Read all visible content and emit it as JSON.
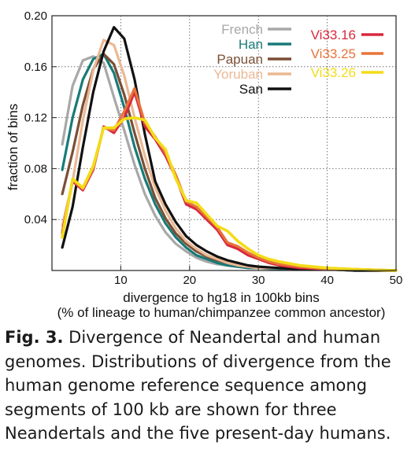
{
  "chart_data": {
    "type": "line",
    "xlabel": "divergence to hg18 in 100kb bins",
    "xlabel2": "(% of lineage to human/chimpanzee common ancestor)",
    "ylabel": "fraction of bins",
    "xlim": [
      0,
      50
    ],
    "ylim": [
      0,
      0.2
    ],
    "xticks": [
      10,
      20,
      30,
      40,
      50
    ],
    "yticks": [
      0.04,
      0.08,
      0.12,
      0.16,
      0.2
    ],
    "ytick_labels": [
      "0.04",
      "0.08",
      "0.12",
      "0.16",
      "0.20"
    ],
    "grid": true,
    "legend_placement": "top-right",
    "series": [
      {
        "name": "French",
        "color": "#a8a8a8",
        "width": 3.2,
        "x": [
          1.5,
          3,
          4.5,
          6,
          7.5,
          9,
          10.5,
          12,
          13.5,
          15,
          16.5,
          18,
          19.5,
          21,
          22.5,
          24,
          25.5,
          27,
          28.5,
          30,
          33,
          36,
          40,
          44,
          50
        ],
        "y": [
          0.099,
          0.145,
          0.165,
          0.168,
          0.163,
          0.136,
          0.11,
          0.083,
          0.06,
          0.043,
          0.03,
          0.021,
          0.015,
          0.01,
          0.007,
          0.005,
          0.004,
          0.003,
          0.002,
          0.002,
          0.001,
          0.001,
          0.001,
          0.0,
          0.0
        ]
      },
      {
        "name": "Han",
        "color": "#187a78",
        "width": 3.2,
        "x": [
          1.5,
          3,
          4.5,
          6,
          7.5,
          9,
          10.5,
          12,
          13.5,
          15,
          16.5,
          18,
          19.5,
          21,
          22.5,
          24,
          25.5,
          27,
          28.5,
          30,
          33,
          36,
          40,
          44,
          50
        ],
        "y": [
          0.079,
          0.12,
          0.15,
          0.166,
          0.17,
          0.155,
          0.128,
          0.097,
          0.072,
          0.052,
          0.037,
          0.026,
          0.018,
          0.012,
          0.009,
          0.006,
          0.004,
          0.003,
          0.002,
          0.002,
          0.001,
          0.001,
          0.001,
          0.0,
          0.0
        ]
      },
      {
        "name": "Papuan",
        "color": "#7a4f35",
        "width": 3.2,
        "x": [
          1.5,
          3,
          4.5,
          6,
          7.5,
          9,
          10.5,
          12,
          13.5,
          15,
          16.5,
          18,
          19.5,
          21,
          22.5,
          24,
          25.5,
          27,
          28.5,
          30,
          33,
          36,
          40,
          44,
          50
        ],
        "y": [
          0.06,
          0.093,
          0.13,
          0.158,
          0.17,
          0.162,
          0.138,
          0.108,
          0.08,
          0.057,
          0.041,
          0.029,
          0.021,
          0.015,
          0.011,
          0.008,
          0.006,
          0.004,
          0.003,
          0.002,
          0.002,
          0.001,
          0.001,
          0.0,
          0.0
        ]
      },
      {
        "name": "Yoruban",
        "color": "#ebb894",
        "width": 3.2,
        "x": [
          1.5,
          3,
          4.5,
          6,
          7.5,
          9,
          10.5,
          12,
          13.5,
          15,
          16.5,
          18,
          19.5,
          21,
          22.5,
          24,
          25.5,
          27,
          28.5,
          30,
          33,
          36,
          40,
          44,
          50
        ],
        "y": [
          0.035,
          0.07,
          0.118,
          0.157,
          0.181,
          0.177,
          0.153,
          0.12,
          0.09,
          0.065,
          0.047,
          0.033,
          0.023,
          0.017,
          0.012,
          0.009,
          0.006,
          0.004,
          0.003,
          0.002,
          0.002,
          0.001,
          0.001,
          0.0,
          0.0
        ]
      },
      {
        "name": "San",
        "color": "#111111",
        "width": 3.2,
        "x": [
          1.5,
          3,
          4.5,
          6,
          7.5,
          9,
          10.5,
          12,
          13.5,
          15,
          16.5,
          18,
          19.5,
          21,
          22.5,
          24,
          25.5,
          27,
          28.5,
          30,
          33,
          36,
          40,
          44,
          50
        ],
        "y": [
          0.018,
          0.05,
          0.097,
          0.14,
          0.172,
          0.191,
          0.182,
          0.15,
          0.107,
          0.07,
          0.052,
          0.038,
          0.027,
          0.02,
          0.015,
          0.011,
          0.008,
          0.006,
          0.004,
          0.003,
          0.002,
          0.001,
          0.001,
          0.0,
          0.0
        ]
      },
      {
        "name": "Vi33.16",
        "color": "#d8283d",
        "width": 3.2,
        "x": [
          1.5,
          3,
          4.5,
          6,
          7.5,
          9,
          10.5,
          12,
          13.5,
          15,
          16.5,
          18,
          19.5,
          21,
          22.5,
          24,
          25.5,
          27,
          28.5,
          30,
          31.5,
          33,
          36,
          40,
          44,
          50
        ],
        "y": [
          0.03,
          0.07,
          0.063,
          0.079,
          0.113,
          0.108,
          0.12,
          0.14,
          0.113,
          0.103,
          0.09,
          0.073,
          0.052,
          0.048,
          0.04,
          0.032,
          0.02,
          0.017,
          0.012,
          0.009,
          0.006,
          0.004,
          0.002,
          0.001,
          0.001,
          0.0
        ]
      },
      {
        "name": "Vi33.25",
        "color": "#e8733a",
        "width": 3.2,
        "x": [
          1.5,
          3,
          4.5,
          6,
          7.5,
          9,
          10.5,
          12,
          13.5,
          15,
          16.5,
          18,
          19.5,
          21,
          22.5,
          24,
          25.5,
          27,
          28.5,
          30,
          31.5,
          33,
          36,
          40,
          44,
          50
        ],
        "y": [
          0.028,
          0.071,
          0.064,
          0.08,
          0.112,
          0.11,
          0.125,
          0.143,
          0.116,
          0.105,
          0.092,
          0.075,
          0.054,
          0.05,
          0.042,
          0.034,
          0.022,
          0.019,
          0.014,
          0.01,
          0.007,
          0.005,
          0.003,
          0.001,
          0.001,
          0.0
        ]
      },
      {
        "name": "Vi33.26",
        "color": "#f3dc18",
        "width": 3.6,
        "x": [
          1.5,
          3,
          4.5,
          6,
          7.5,
          9,
          10.5,
          12,
          13.5,
          15,
          16.5,
          18,
          19.5,
          21,
          22.5,
          24,
          25.5,
          27,
          28.5,
          30,
          31.5,
          33,
          36,
          40,
          44,
          50
        ],
        "y": [
          0.026,
          0.072,
          0.065,
          0.082,
          0.112,
          0.112,
          0.119,
          0.12,
          0.118,
          0.104,
          0.095,
          0.072,
          0.055,
          0.053,
          0.044,
          0.035,
          0.031,
          0.023,
          0.017,
          0.012,
          0.009,
          0.007,
          0.004,
          0.002,
          0.001,
          0.0
        ]
      }
    ]
  },
  "caption": {
    "label": "Fig. 3.",
    "text": "Divergence of Neandertal and human genomes. Distributions of divergence from the human genome reference sequence among segments of 100 kb are shown for three Neandertals and the five present-day humans."
  }
}
